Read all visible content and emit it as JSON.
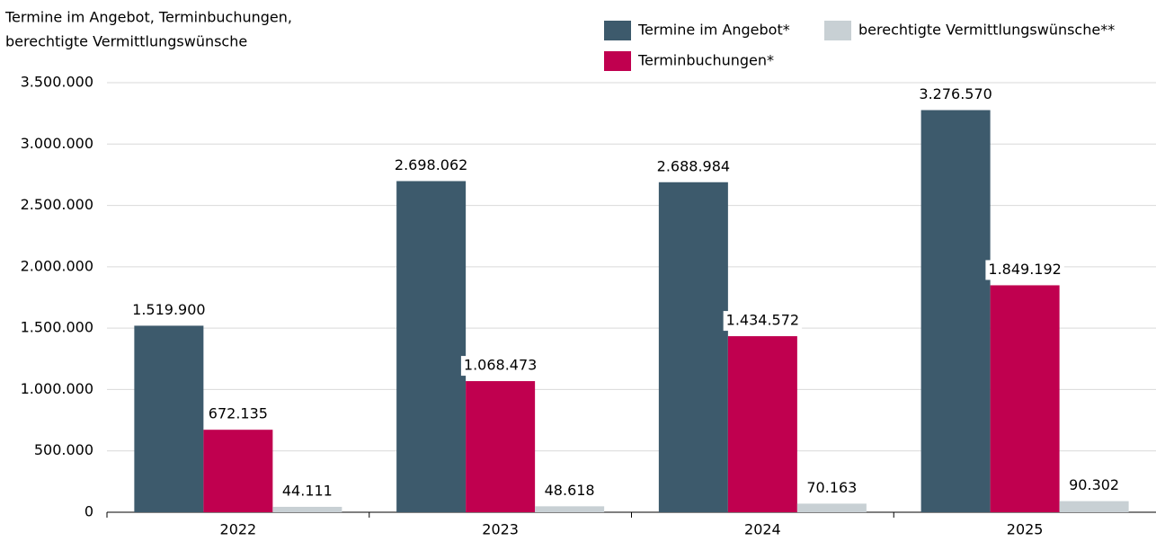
{
  "chart_data": {
    "type": "bar",
    "title_lines": [
      "Termine im Angebot, Terminbuchungen,",
      "berechtigte Vermittlungswünsche"
    ],
    "categories": [
      "2022",
      "2023",
      "2024",
      "2025"
    ],
    "series": [
      {
        "name": "Termine im Angebot*",
        "color": "#3d5a6c",
        "values": [
          1519900,
          2698062,
          2688984,
          3276570
        ],
        "value_labels": [
          "1.519.900",
          "2.698.062",
          "2.688.984",
          "3.276.570"
        ]
      },
      {
        "name": "Terminbuchungen*",
        "color": "#c0004f",
        "values": [
          672135,
          1068473,
          1434572,
          1849192
        ],
        "value_labels": [
          "672.135",
          "1.068.473",
          "1.434.572",
          "1.849.192"
        ]
      },
      {
        "name": "berechtigte Vermittlungswünsche**",
        "color": "#c8d0d4",
        "values": [
          44111,
          48618,
          70163,
          90302
        ],
        "value_labels": [
          "44.111",
          "48.618",
          "70.163",
          "90.302"
        ]
      }
    ],
    "ylim": [
      0,
      3500000
    ],
    "yticks": [
      0,
      {
        "value": 500000,
        "label": "500.000"
      },
      {
        "value": 1000000,
        "label": "1.000.000"
      },
      {
        "value": 1500000,
        "label": "1.500.000"
      },
      {
        "value": 2000000,
        "label": "2.000.000"
      },
      {
        "value": 2500000,
        "label": "2.500.000"
      },
      {
        "value": 3000000,
        "label": "3.000.000"
      },
      {
        "value": 3500000,
        "label": "3.500.000"
      }
    ],
    "grid": true
  }
}
